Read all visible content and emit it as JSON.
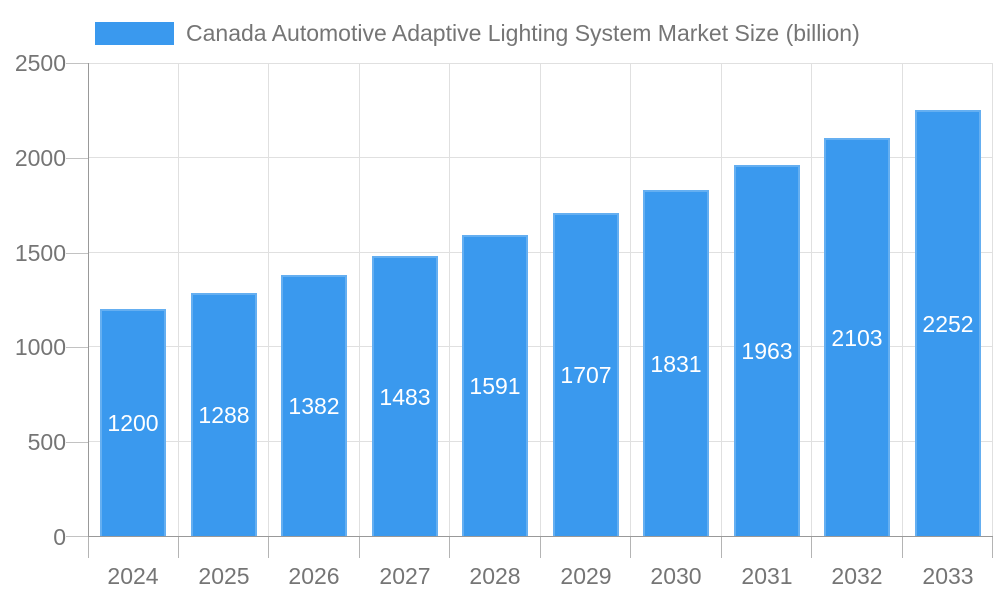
{
  "chart_data": {
    "type": "bar",
    "title": "Canada Automotive Adaptive Lighting System Market Size (billion)",
    "categories": [
      "2024",
      "2025",
      "2026",
      "2027",
      "2028",
      "2029",
      "2030",
      "2031",
      "2032",
      "2033"
    ],
    "values": [
      1200,
      1288,
      1382,
      1483,
      1591,
      1707,
      1831,
      1963,
      2103,
      2252
    ],
    "xlabel": "",
    "ylabel": "",
    "ylim": [
      0,
      2500
    ],
    "yticks": [
      0,
      500,
      1000,
      1500,
      2000,
      2500
    ],
    "grid": "both",
    "legend_position": "top-left",
    "value_labels": "inside-center",
    "colors": {
      "bar": "#3a99ee",
      "value_label": "#ffffff",
      "axis_text": "#757575",
      "axis_line": "#999999",
      "gridline": "#e0e0e0",
      "tick": "#c2c2c2",
      "background": "#ffffff"
    }
  }
}
